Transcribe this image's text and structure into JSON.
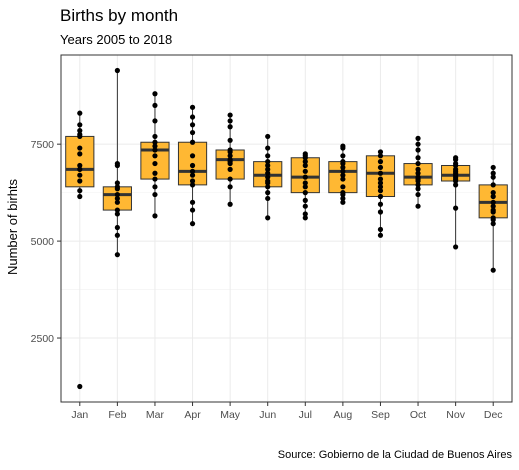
{
  "chart_data": {
    "type": "box",
    "title": "Births by month",
    "subtitle": "Years 2005 to 2018",
    "caption": "Source: Gobierno de la Ciudad de Buenos Aires",
    "xlabel": "",
    "ylabel": "Number of birhts",
    "ylim": [
      850,
      9800
    ],
    "yticks": [
      2500,
      5000,
      7500
    ],
    "grid": true,
    "legend": "none",
    "box_color": "#FFB833",
    "point_color": "#000000",
    "categories": [
      "Jan",
      "Feb",
      "Mar",
      "Apr",
      "May",
      "Jun",
      "Jul",
      "Aug",
      "Sep",
      "Oct",
      "Nov",
      "Dec"
    ],
    "boxes": [
      {
        "month": "Jan",
        "q1": 6400,
        "median": 6850,
        "q3": 7700,
        "low": 6150,
        "high": 8300,
        "points": [
          1250,
          6150,
          6300,
          6550,
          6700,
          6850,
          6950,
          7250,
          7700,
          7750,
          7850,
          8000,
          8300,
          7400
        ]
      },
      {
        "month": "Feb",
        "q1": 5800,
        "median": 6200,
        "q3": 6400,
        "low": 4650,
        "high": 9400,
        "points": [
          4650,
          5150,
          5350,
          5700,
          5800,
          6000,
          6200,
          6350,
          6400,
          6500,
          6950,
          7000,
          9400,
          6100
        ]
      },
      {
        "month": "Mar",
        "q1": 6600,
        "median": 7350,
        "q3": 7550,
        "low": 5650,
        "high": 8800,
        "points": [
          5650,
          6200,
          6400,
          6600,
          6750,
          7000,
          7200,
          7350,
          7450,
          7550,
          7700,
          8100,
          8500,
          8800
        ]
      },
      {
        "month": "Apr",
        "q1": 6450,
        "median": 6800,
        "q3": 7550,
        "low": 5450,
        "high": 8450,
        "points": [
          5450,
          5800,
          6000,
          6450,
          6550,
          6700,
          6800,
          6950,
          7200,
          7550,
          7800,
          8000,
          8200,
          8450
        ]
      },
      {
        "month": "May",
        "q1": 6600,
        "median": 7100,
        "q3": 7350,
        "low": 5950,
        "high": 8250,
        "points": [
          5950,
          6400,
          6600,
          6850,
          7000,
          7100,
          7200,
          7300,
          7350,
          7600,
          7950,
          8100,
          8250,
          7050
        ]
      },
      {
        "month": "Jun",
        "q1": 6400,
        "median": 6700,
        "q3": 7050,
        "low": 5600,
        "high": 7700,
        "points": [
          5600,
          6100,
          6250,
          6400,
          6550,
          6650,
          6750,
          6850,
          6950,
          7050,
          7200,
          7400,
          7700,
          6500
        ]
      },
      {
        "month": "Jul",
        "q1": 6250,
        "median": 6650,
        "q3": 7150,
        "low": 5600,
        "high": 7250,
        "points": [
          5600,
          5700,
          5900,
          6050,
          6250,
          6500,
          6650,
          6800,
          6950,
          7050,
          7150,
          7250,
          7200,
          6400
        ]
      },
      {
        "month": "Aug",
        "q1": 6250,
        "median": 6800,
        "q3": 7050,
        "low": 6000,
        "high": 7450,
        "points": [
          6000,
          6100,
          6250,
          6400,
          6600,
          6800,
          6900,
          7000,
          7050,
          7200,
          7400,
          7450,
          6700,
          6200
        ]
      },
      {
        "month": "Sep",
        "q1": 6150,
        "median": 6750,
        "q3": 7200,
        "low": 5150,
        "high": 7300,
        "points": [
          5150,
          5300,
          5750,
          5950,
          6150,
          6400,
          6600,
          6750,
          6900,
          7050,
          7200,
          7300,
          6500,
          6300
        ]
      },
      {
        "month": "Oct",
        "q1": 6450,
        "median": 6650,
        "q3": 7000,
        "low": 5900,
        "high": 7650,
        "points": [
          5900,
          6200,
          6350,
          6450,
          6550,
          6650,
          6750,
          6850,
          7000,
          7150,
          7350,
          7500,
          7650,
          6600
        ]
      },
      {
        "month": "Nov",
        "q1": 6550,
        "median": 6700,
        "q3": 6950,
        "low": 4850,
        "high": 7150,
        "points": [
          4850,
          5850,
          6450,
          6550,
          6600,
          6700,
          6800,
          6850,
          6950,
          7000,
          7100,
          7150,
          6650,
          6750
        ]
      },
      {
        "month": "Dec",
        "q1": 5600,
        "median": 6000,
        "q3": 6450,
        "low": 4250,
        "high": 6900,
        "points": [
          4250,
          5450,
          5550,
          5600,
          5750,
          5900,
          6000,
          6150,
          6250,
          6450,
          6650,
          6750,
          6900,
          5800
        ]
      }
    ]
  }
}
